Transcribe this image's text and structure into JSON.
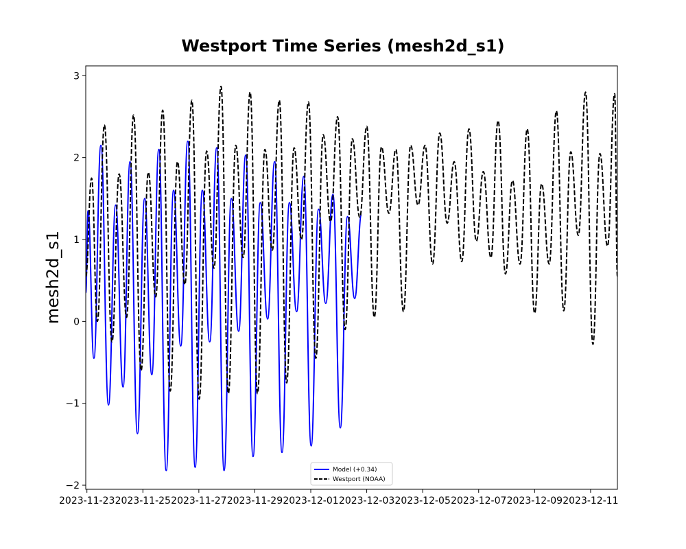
{
  "chart_data": {
    "type": "line",
    "title": "Westport Time Series (mesh2d_s1)",
    "xlabel": "",
    "ylabel": "mesh2d_s1",
    "x_range": [
      "2023-11-22T23:00",
      "2023-12-11T23:00"
    ],
    "ylim": [
      -2.05,
      3.12
    ],
    "x_ticks": [
      "2023-11-23",
      "2023-11-25",
      "2023-11-27",
      "2023-11-29",
      "2023-12-01",
      "2023-12-03",
      "2023-12-05",
      "2023-12-07",
      "2023-12-09",
      "2023-12-11"
    ],
    "y_ticks": [
      -2,
      -1,
      0,
      1,
      2,
      3
    ],
    "y_tick_labels": [
      "−2",
      "−1",
      "0",
      "1",
      "2",
      "3"
    ],
    "grid": false,
    "legend_position": "bottom-center",
    "series": [
      {
        "name": "Model (+0.34)",
        "color": "#0000ff",
        "style": "solid",
        "points": [
          [
            "2023-11-22T23:00",
            0.35
          ],
          [
            "2023-11-23T01:00",
            1.35
          ],
          [
            "2023-11-23T06:00",
            -0.45
          ],
          [
            "2023-11-23T12:00",
            2.15
          ],
          [
            "2023-11-23T18:30",
            -1.02
          ],
          [
            "2023-11-24T00:40",
            1.42
          ],
          [
            "2023-11-24T07:00",
            -0.8
          ],
          [
            "2023-11-24T13:00",
            1.95
          ],
          [
            "2023-11-24T19:20",
            -1.37
          ],
          [
            "2023-11-25T01:30",
            1.5
          ],
          [
            "2023-11-25T07:40",
            -0.65
          ],
          [
            "2023-11-25T13:40",
            2.1
          ],
          [
            "2023-11-25T20:00",
            -1.82
          ],
          [
            "2023-11-26T02:20",
            1.6
          ],
          [
            "2023-11-26T08:30",
            -0.3
          ],
          [
            "2023-11-26T14:30",
            2.2
          ],
          [
            "2023-11-26T20:50",
            -1.78
          ],
          [
            "2023-11-27T03:00",
            1.6
          ],
          [
            "2023-11-27T09:20",
            -0.25
          ],
          [
            "2023-11-27T15:20",
            2.12
          ],
          [
            "2023-11-27T21:40",
            -1.82
          ],
          [
            "2023-11-28T03:50",
            1.5
          ],
          [
            "2023-11-28T10:10",
            -0.12
          ],
          [
            "2023-11-28T16:10",
            2.03
          ],
          [
            "2023-11-28T22:30",
            -1.65
          ],
          [
            "2023-11-29T04:40",
            1.45
          ],
          [
            "2023-11-29T11:00",
            0.03
          ],
          [
            "2023-11-29T17:00",
            1.95
          ],
          [
            "2023-11-29T23:20",
            -1.6
          ],
          [
            "2023-11-30T05:40",
            1.45
          ],
          [
            "2023-11-30T11:50",
            0.12
          ],
          [
            "2023-11-30T18:00",
            1.77
          ],
          [
            "2023-12-01T00:20",
            -1.52
          ],
          [
            "2023-12-01T06:40",
            1.37
          ],
          [
            "2023-12-01T12:50",
            0.22
          ],
          [
            "2023-12-01T19:00",
            1.55
          ],
          [
            "2023-12-02T01:20",
            -1.3
          ],
          [
            "2023-12-02T07:30",
            1.28
          ],
          [
            "2023-12-02T13:40",
            0.28
          ],
          [
            "2023-12-02T19:30",
            1.3
          ]
        ]
      },
      {
        "name": "Westport (NOAA)",
        "color": "#000000",
        "style": "dashed",
        "points": [
          [
            "2023-11-22T23:00",
            0.55
          ],
          [
            "2023-11-23T04:00",
            1.75
          ],
          [
            "2023-11-23T09:00",
            0.0
          ],
          [
            "2023-11-23T15:00",
            2.4
          ],
          [
            "2023-11-23T21:30",
            -0.25
          ],
          [
            "2023-11-24T03:40",
            1.8
          ],
          [
            "2023-11-24T10:00",
            0.05
          ],
          [
            "2023-11-24T16:00",
            2.52
          ],
          [
            "2023-11-24T22:30",
            -0.6
          ],
          [
            "2023-11-25T04:40",
            1.82
          ],
          [
            "2023-11-25T11:00",
            0.3
          ],
          [
            "2023-11-25T17:00",
            2.58
          ],
          [
            "2023-11-25T23:30",
            -0.85
          ],
          [
            "2023-11-26T05:40",
            1.95
          ],
          [
            "2023-11-26T12:00",
            0.45
          ],
          [
            "2023-11-26T18:00",
            2.7
          ],
          [
            "2023-11-27T00:20",
            -0.95
          ],
          [
            "2023-11-27T06:40",
            2.08
          ],
          [
            "2023-11-27T13:00",
            0.65
          ],
          [
            "2023-11-27T19:00",
            2.87
          ],
          [
            "2023-11-28T01:20",
            -0.88
          ],
          [
            "2023-11-28T07:40",
            2.15
          ],
          [
            "2023-11-28T14:00",
            0.78
          ],
          [
            "2023-11-28T20:00",
            2.8
          ],
          [
            "2023-11-29T02:20",
            -0.88
          ],
          [
            "2023-11-29T08:40",
            2.1
          ],
          [
            "2023-11-29T15:00",
            0.87
          ],
          [
            "2023-11-29T21:00",
            2.7
          ],
          [
            "2023-11-30T03:20",
            -0.75
          ],
          [
            "2023-11-30T09:40",
            2.12
          ],
          [
            "2023-11-30T16:00",
            1.0
          ],
          [
            "2023-11-30T22:00",
            2.68
          ],
          [
            "2023-12-01T04:20",
            -0.45
          ],
          [
            "2023-12-01T10:40",
            2.28
          ],
          [
            "2023-12-01T17:00",
            1.22
          ],
          [
            "2023-12-01T23:00",
            2.5
          ],
          [
            "2023-12-02T05:30",
            -0.1
          ],
          [
            "2023-12-02T11:40",
            2.23
          ],
          [
            "2023-12-02T18:00",
            1.27
          ],
          [
            "2023-12-03T00:00",
            2.38
          ],
          [
            "2023-12-03T06:30",
            0.05
          ],
          [
            "2023-12-03T12:40",
            2.13
          ],
          [
            "2023-12-03T19:00",
            1.32
          ],
          [
            "2023-12-04T01:00",
            2.1
          ],
          [
            "2023-12-04T07:30",
            0.12
          ],
          [
            "2023-12-04T13:40",
            2.15
          ],
          [
            "2023-12-04T20:00",
            1.42
          ],
          [
            "2023-12-05T02:00",
            2.15
          ],
          [
            "2023-12-05T08:30",
            0.7
          ],
          [
            "2023-12-05T14:40",
            2.3
          ],
          [
            "2023-12-05T21:00",
            1.2
          ],
          [
            "2023-12-06T03:00",
            1.95
          ],
          [
            "2023-12-06T09:30",
            0.73
          ],
          [
            "2023-12-06T15:40",
            2.35
          ],
          [
            "2023-12-06T22:00",
            0.98
          ],
          [
            "2023-12-07T04:00",
            1.83
          ],
          [
            "2023-12-07T10:30",
            0.78
          ],
          [
            "2023-12-07T16:40",
            2.45
          ],
          [
            "2023-12-07T23:00",
            0.58
          ],
          [
            "2023-12-08T05:00",
            1.72
          ],
          [
            "2023-12-08T11:30",
            0.7
          ],
          [
            "2023-12-08T17:40",
            2.35
          ],
          [
            "2023-12-09T00:00",
            0.1
          ],
          [
            "2023-12-09T06:00",
            1.68
          ],
          [
            "2023-12-09T12:30",
            0.7
          ],
          [
            "2023-12-09T18:40",
            2.57
          ],
          [
            "2023-12-10T01:00",
            0.13
          ],
          [
            "2023-12-10T07:00",
            2.07
          ],
          [
            "2023-12-10T13:30",
            1.05
          ],
          [
            "2023-12-10T19:40",
            2.8
          ],
          [
            "2023-12-11T02:00",
            -0.28
          ],
          [
            "2023-12-11T08:00",
            2.05
          ],
          [
            "2023-12-11T14:30",
            0.92
          ],
          [
            "2023-12-11T20:40",
            2.78
          ],
          [
            "2023-12-11T23:00",
            0.55
          ]
        ]
      }
    ]
  }
}
